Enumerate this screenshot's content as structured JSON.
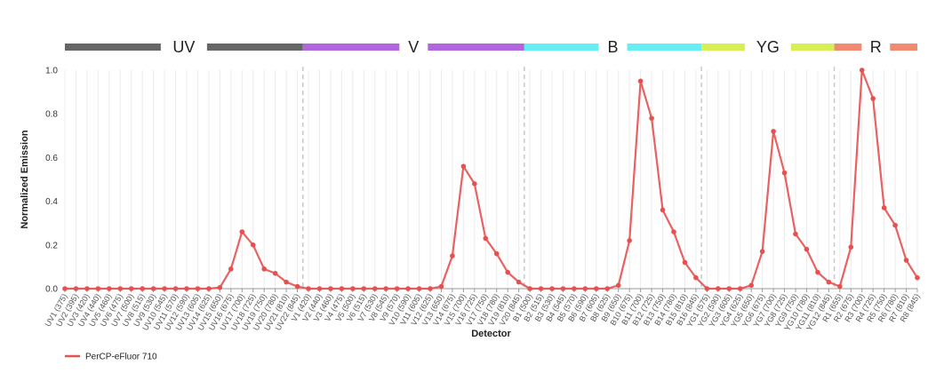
{
  "chart_data": {
    "type": "line",
    "xlabel": "Detector",
    "ylabel": "Normalized Emission",
    "ylim": [
      0,
      1.0
    ],
    "yticks": [
      "0.0",
      "0.2",
      "0.4",
      "0.6",
      "0.8",
      "1.0"
    ],
    "grid": "vertical",
    "legend_placement": "bottom-left",
    "lasers": [
      {
        "name": "UV",
        "color": "#666666",
        "first_index": 0,
        "count": 22
      },
      {
        "name": "V",
        "color": "#b266dd",
        "first_index": 22,
        "count": 20
      },
      {
        "name": "B",
        "color": "#66eef2",
        "first_index": 42,
        "count": 16
      },
      {
        "name": "YG",
        "color": "#d7ee55",
        "first_index": 58,
        "count": 12
      },
      {
        "name": "R",
        "color": "#f08a70",
        "first_index": 70,
        "count": 8
      }
    ],
    "categories": [
      "UV1 (375)",
      "UV2 (395)",
      "UV3 (420)",
      "UV4 (440)",
      "UV5 (460)",
      "UV6 (475)",
      "UV7 (500)",
      "UV8 (515)",
      "UV9 (530)",
      "UV10 (545)",
      "UV11 (570)",
      "UV12 (590)",
      "UV13 (605)",
      "UV14 (625)",
      "UV15 (650)",
      "UV16 (675)",
      "UV17 (700)",
      "UV18 (725)",
      "UV19 (750)",
      "UV20 (780)",
      "UV21 (810)",
      "UV22 (845)",
      "V1 (420)",
      "V2 (440)",
      "V3 (460)",
      "V4 (475)",
      "V5 (500)",
      "V6 (515)",
      "V7 (530)",
      "V8 (545)",
      "V9 (570)",
      "V10 (590)",
      "V11 (605)",
      "V12 (625)",
      "V13 (650)",
      "V14 (675)",
      "V15 (700)",
      "V16 (725)",
      "V17 (750)",
      "V18 (780)",
      "V19 (810)",
      "V20 (845)",
      "B1 (500)",
      "B2 (515)",
      "B3 (530)",
      "B4 (545)",
      "B5 (570)",
      "B6 (590)",
      "B7 (605)",
      "B8 (625)",
      "B9 (650)",
      "B10 (675)",
      "B11 (700)",
      "B12 (725)",
      "B13 (750)",
      "B14 (780)",
      "B15 (810)",
      "B16 (845)",
      "YG1 (575)",
      "YG2 (590)",
      "YG3 (605)",
      "YG4 (625)",
      "YG5 (650)",
      "YG6 (675)",
      "YG7 (700)",
      "YG8 (725)",
      "YG9 (750)",
      "YG10 (780)",
      "YG11 (810)",
      "YG12 (845)",
      "R1 (655)",
      "R2 (675)",
      "R3 (700)",
      "R4 (725)",
      "R5 (750)",
      "R6 (780)",
      "R7 (810)",
      "R8 (845)"
    ],
    "series": [
      {
        "name": "PerCP-eFluor 710",
        "color": "#e85050",
        "values": [
          0,
          0,
          0,
          0,
          0,
          0,
          0,
          0,
          0,
          0,
          0,
          0,
          0,
          0,
          0.005,
          0.09,
          0.26,
          0.2,
          0.09,
          0.07,
          0.03,
          0.01,
          0,
          0,
          0,
          0,
          0,
          0,
          0,
          0,
          0,
          0,
          0,
          0,
          0.01,
          0.15,
          0.56,
          0.48,
          0.23,
          0.16,
          0.075,
          0.03,
          0,
          0,
          0,
          0,
          0,
          0,
          0,
          0,
          0.015,
          0.22,
          0.95,
          0.78,
          0.36,
          0.26,
          0.12,
          0.05,
          0,
          0,
          0,
          0,
          0.015,
          0.17,
          0.72,
          0.53,
          0.25,
          0.18,
          0.075,
          0.03,
          0.01,
          0.19,
          1.0,
          0.87,
          0.37,
          0.29,
          0.13,
          0.05
        ]
      }
    ]
  }
}
